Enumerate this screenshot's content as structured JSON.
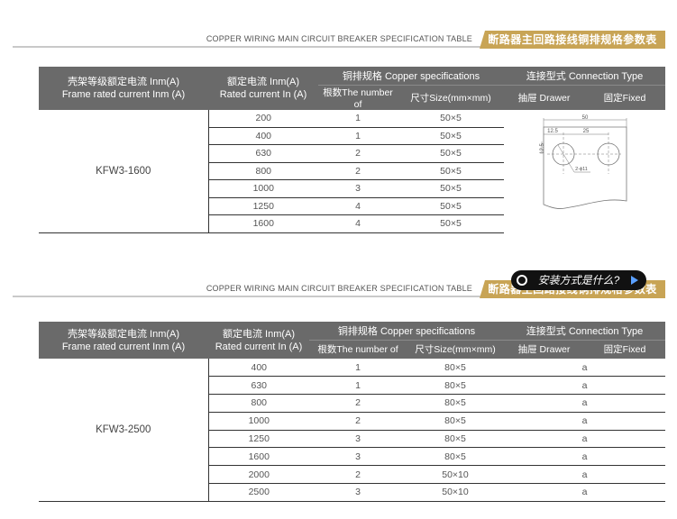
{
  "section1": {
    "banner_en": "COPPER WIRING MAIN CIRCUIT BREAKER SPECIFICATION TABLE",
    "banner_cn": "断路器主回路接线铜排规格参数表",
    "header": {
      "frame_cn": "壳架等级额定电流 Inm(A)",
      "frame_en": "Frame rated current Inm (A)",
      "rated_cn": "额定电流 Inm(A)",
      "rated_en": "Rated current In (A)",
      "copper": "铜排规格 Copper specifications",
      "number": "根数The number of",
      "size": "尺寸Size(mm×mm)",
      "connection": "连接型式 Connection Type",
      "drawer": "抽屉 Drawer",
      "fixed": "固定Fixed"
    },
    "model": "KFW3-1600",
    "rows": [
      {
        "current": "200",
        "number": "1",
        "size": "50×5"
      },
      {
        "current": "400",
        "number": "1",
        "size": "50×5"
      },
      {
        "current": "630",
        "number": "2",
        "size": "50×5"
      },
      {
        "current": "800",
        "number": "2",
        "size": "50×5"
      },
      {
        "current": "1000",
        "number": "3",
        "size": "50×5"
      },
      {
        "current": "1250",
        "number": "4",
        "size": "50×5"
      },
      {
        "current": "1600",
        "number": "4",
        "size": "50×5"
      }
    ],
    "diagram": {
      "dim_total": "50",
      "dim_half": "25",
      "dim_edge": "12.5",
      "dim_side": "12.5",
      "hole": "2-ϕ11"
    }
  },
  "section2": {
    "banner_en": "COPPER WIRING MAIN CIRCUIT BREAKER SPECIFICATION TABLE",
    "banner_cn": "断路器主回路接线铜排规格参数表",
    "header": {
      "frame_cn": "壳架等级额定电流 Inm(A)",
      "frame_en": "Frame rated current Inm (A)",
      "rated_cn": "额定电流 Inm(A)",
      "rated_en": "Rated current In (A)",
      "copper": "铜排规格 Copper specifications",
      "number": "根数The number of",
      "size": "尺寸Size(mm×mm)",
      "connection": "连接型式 Connection Type",
      "drawer": "抽屉 Drawer",
      "fixed": "固定Fixed"
    },
    "model": "KFW3-2500",
    "rows": [
      {
        "current": "400",
        "number": "1",
        "size": "80×5",
        "conn": "a"
      },
      {
        "current": "630",
        "number": "1",
        "size": "80×5",
        "conn": "a"
      },
      {
        "current": "800",
        "number": "2",
        "size": "80×5",
        "conn": "a"
      },
      {
        "current": "1000",
        "number": "2",
        "size": "80×5",
        "conn": "a"
      },
      {
        "current": "1250",
        "number": "3",
        "size": "80×5",
        "conn": "a"
      },
      {
        "current": "1600",
        "number": "3",
        "size": "80×5",
        "conn": "a"
      },
      {
        "current": "2000",
        "number": "2",
        "size": "50×10",
        "conn": "a"
      },
      {
        "current": "2500",
        "number": "3",
        "size": "50×10",
        "conn": "a"
      }
    ]
  },
  "overlay": {
    "chip_text": "安装方式是什么?"
  }
}
